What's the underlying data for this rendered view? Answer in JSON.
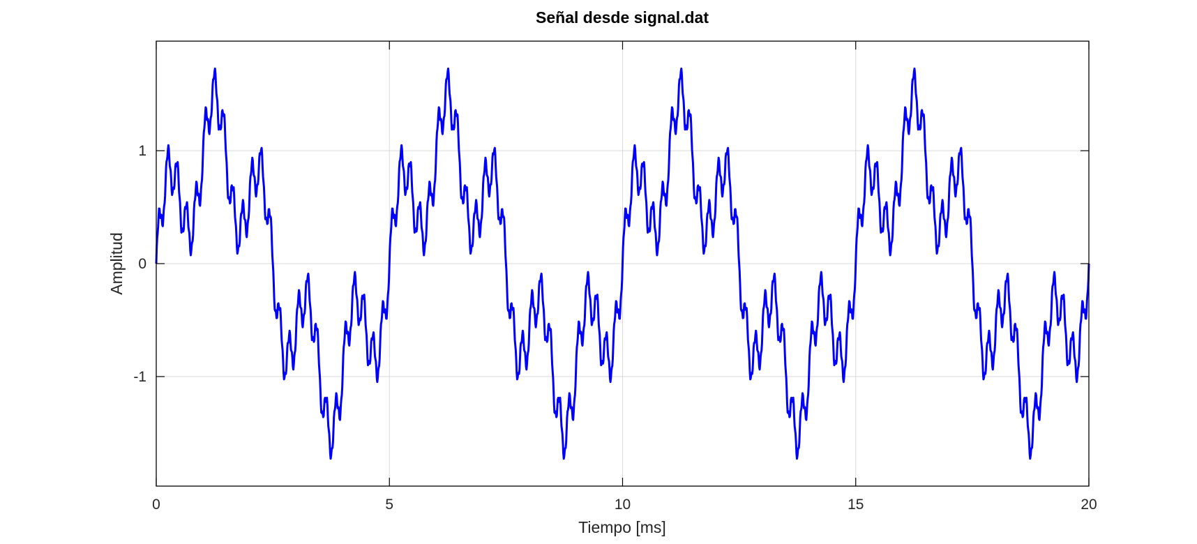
{
  "chart_data": {
    "type": "line",
    "title": "Señal desde signal.dat",
    "xlabel": "Tiempo [ms]",
    "ylabel": "Amplitud",
    "xlim": [
      0,
      20
    ],
    "ylim": [
      -1.97,
      1.97
    ],
    "xticks": [
      0,
      5,
      10,
      15,
      20
    ],
    "xtick_labels": [
      "0",
      "5",
      "10",
      "15",
      "20"
    ],
    "yticks": [
      -1,
      0,
      1
    ],
    "ytick_labels": [
      "-1",
      "0",
      "1"
    ],
    "grid": true,
    "colors": {
      "line": "#0000ff",
      "grid": "#d9d9d9",
      "axes": "#000000"
    },
    "signal_model": {
      "duration_ms": 20,
      "sample_interval_ms": 0.01,
      "components": [
        {
          "frequency_hz": 200,
          "amplitude": 1.0,
          "phase_deg": 0
        },
        {
          "frequency_hz": 1000,
          "amplitude": 0.5,
          "phase_deg": 0
        },
        {
          "frequency_hz": 5000,
          "amplitude": 0.2,
          "phase_deg": 0
        },
        {
          "frequency_hz": 20000,
          "amplitude": 0.04,
          "phase_deg": 0
        }
      ]
    }
  }
}
